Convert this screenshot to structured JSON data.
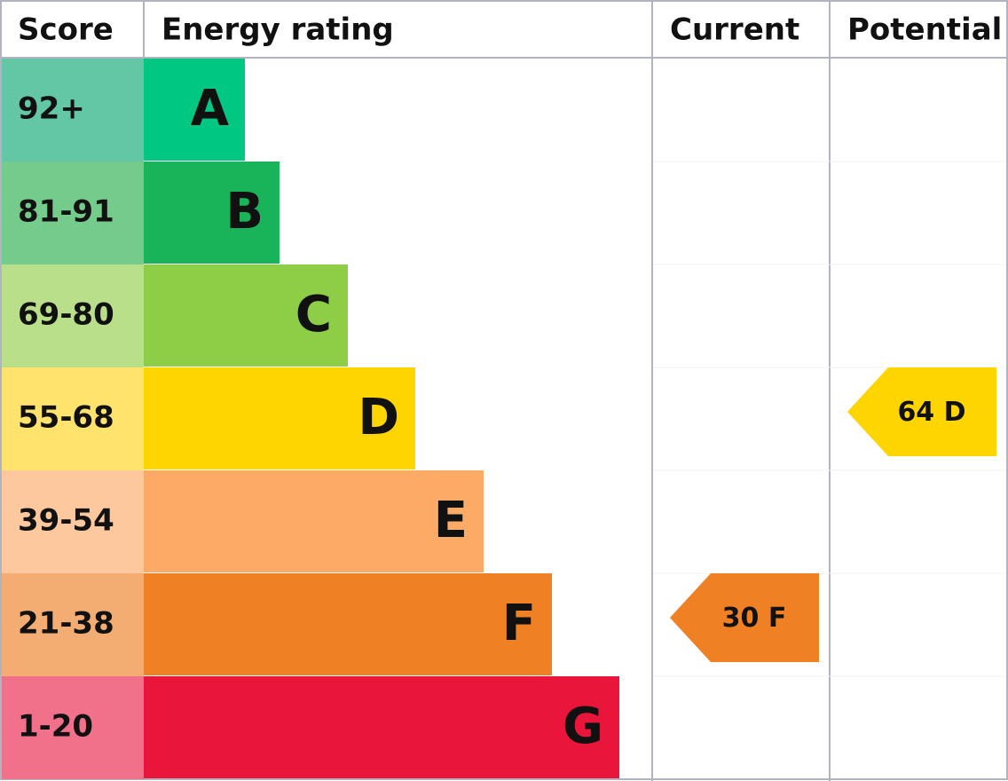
{
  "header": {
    "score": "Score",
    "energy_rating": "Energy rating",
    "current": "Current",
    "potential": "Potential"
  },
  "rows": [
    {
      "score": "92+",
      "letter": "A",
      "score_color": "#63c6a5",
      "bar_color": "#00c781"
    },
    {
      "score": "81-91",
      "letter": "B",
      "score_color": "#75cb8c",
      "bar_color": "#19b459"
    },
    {
      "score": "69-80",
      "letter": "C",
      "score_color": "#b9df8b",
      "bar_color": "#8dce46"
    },
    {
      "score": "55-68",
      "letter": "D",
      "score_color": "#ffe36d",
      "bar_color": "#ffd500"
    },
    {
      "score": "39-54",
      "letter": "E",
      "score_color": "#fdc89e",
      "bar_color": "#fcaa65"
    },
    {
      "score": "21-38",
      "letter": "F",
      "score_color": "#f3ad72",
      "bar_color": "#ef8023"
    },
    {
      "score": "1-20",
      "letter": "G",
      "score_color": "#f07189",
      "bar_color": "#e9153b"
    }
  ],
  "current": {
    "score": "30",
    "rating": "F"
  },
  "potential": {
    "score": "64",
    "rating": "D"
  }
}
